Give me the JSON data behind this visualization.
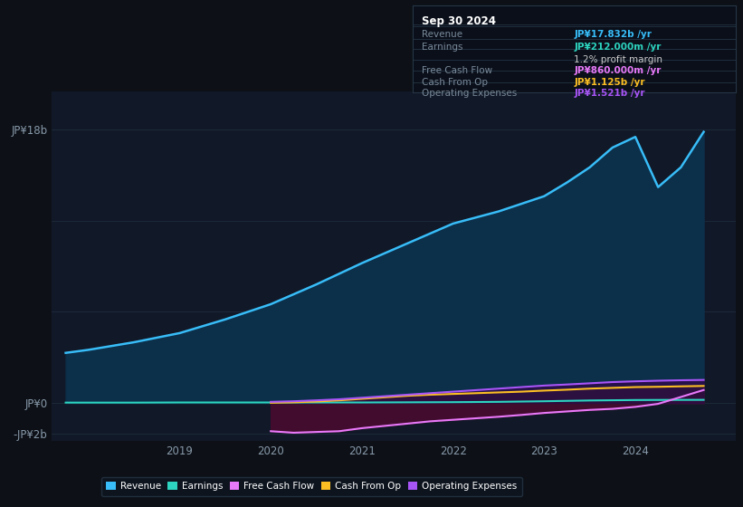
{
  "background_color": "#0d1117",
  "plot_bg_color": "#111827",
  "grid_color": "#1e2d3d",
  "text_color": "#8899aa",
  "series_colors": {
    "Revenue": "#38bdf8",
    "Earnings": "#2dd4bf",
    "Free Cash Flow": "#e879f9",
    "Cash From Op": "#fbbf24",
    "Operating Expenses": "#a855f7"
  },
  "legend_items": [
    "Revenue",
    "Earnings",
    "Free Cash Flow",
    "Cash From Op",
    "Operating Expenses"
  ],
  "legend_colors": [
    "#38bdf8",
    "#2dd4bf",
    "#e879f9",
    "#fbbf24",
    "#a855f7"
  ],
  "info_box": {
    "title": "Sep 30 2024",
    "rows": [
      {
        "label": "Revenue",
        "value": "JP¥17.832b /yr",
        "value_color": "#38bdf8"
      },
      {
        "label": "Earnings",
        "value": "JP¥212.000m /yr",
        "value_color": "#2dd4bf"
      },
      {
        "label": "",
        "value": "1.2% profit margin",
        "value_color": "#cccccc"
      },
      {
        "label": "Free Cash Flow",
        "value": "JP¥860.000m /yr",
        "value_color": "#e879f9"
      },
      {
        "label": "Cash From Op",
        "value": "JP¥1.125b /yr",
        "value_color": "#fbbf24"
      },
      {
        "label": "Operating Expenses",
        "value": "JP¥1.521b /yr",
        "value_color": "#a855f7"
      }
    ]
  },
  "revenue_x": [
    2017.75,
    2018.0,
    2018.5,
    2019.0,
    2019.5,
    2020.0,
    2020.5,
    2021.0,
    2021.5,
    2022.0,
    2022.5,
    2023.0,
    2023.25,
    2023.5,
    2023.75,
    2024.0,
    2024.25,
    2024.5,
    2024.75
  ],
  "revenue_y": [
    3300000000.0,
    3500000000.0,
    4000000000.0,
    4600000000.0,
    5500000000.0,
    6500000000.0,
    7800000000.0,
    9200000000.0,
    10500000000.0,
    11800000000.0,
    12600000000.0,
    13600000000.0,
    14500000000.0,
    15500000000.0,
    16800000000.0,
    17500000000.0,
    14200000000.0,
    15500000000.0,
    17832000000.0
  ],
  "earnings_x": [
    2017.75,
    2018.0,
    2018.5,
    2019.0,
    2019.5,
    2020.0,
    2020.5,
    2021.0,
    2021.5,
    2022.0,
    2022.5,
    2023.0,
    2023.5,
    2024.0,
    2024.5,
    2024.75
  ],
  "earnings_y": [
    30000000.0,
    30000000.0,
    30000000.0,
    40000000.0,
    40000000.0,
    40000000.0,
    40000000.0,
    40000000.0,
    50000000.0,
    60000000.0,
    80000000.0,
    120000000.0,
    170000000.0,
    200000000.0,
    210000000.0,
    212000000.0
  ],
  "fcf_x": [
    2020.0,
    2020.25,
    2020.5,
    2020.75,
    2021.0,
    2021.25,
    2021.5,
    2021.75,
    2022.0,
    2022.25,
    2022.5,
    2022.75,
    2023.0,
    2023.25,
    2023.5,
    2023.75,
    2024.0,
    2024.25,
    2024.5,
    2024.75
  ],
  "fcf_y": [
    -1850000000.0,
    -1950000000.0,
    -1900000000.0,
    -1850000000.0,
    -1650000000.0,
    -1500000000.0,
    -1350000000.0,
    -1200000000.0,
    -1100000000.0,
    -1000000000.0,
    -900000000.0,
    -780000000.0,
    -650000000.0,
    -550000000.0,
    -450000000.0,
    -380000000.0,
    -250000000.0,
    -50000000.0,
    400000000.0,
    860000000.0
  ],
  "cashfromop_x": [
    2020.0,
    2020.25,
    2020.5,
    2020.75,
    2021.0,
    2021.25,
    2021.5,
    2021.75,
    2022.0,
    2022.25,
    2022.5,
    2022.75,
    2023.0,
    2023.25,
    2023.5,
    2023.75,
    2024.0,
    2024.25,
    2024.5,
    2024.75
  ],
  "cashfromop_y": [
    20000000.0,
    50000000.0,
    100000000.0,
    180000000.0,
    280000000.0,
    380000000.0,
    480000000.0,
    550000000.0,
    600000000.0,
    650000000.0,
    700000000.0,
    750000000.0,
    820000000.0,
    880000000.0,
    950000000.0,
    1000000000.0,
    1050000000.0,
    1070000000.0,
    1100000000.0,
    1125000000.0
  ],
  "opex_x": [
    2020.0,
    2020.25,
    2020.5,
    2020.75,
    2021.0,
    2021.25,
    2021.5,
    2021.75,
    2022.0,
    2022.25,
    2022.5,
    2022.75,
    2023.0,
    2023.25,
    2023.5,
    2023.75,
    2024.0,
    2024.25,
    2024.5,
    2024.75
  ],
  "opex_y": [
    80000000.0,
    120000000.0,
    180000000.0,
    250000000.0,
    350000000.0,
    450000000.0,
    550000000.0,
    650000000.0,
    750000000.0,
    850000000.0,
    950000000.0,
    1050000000.0,
    1150000000.0,
    1220000000.0,
    1300000000.0,
    1380000000.0,
    1430000000.0,
    1470000000.0,
    1500000000.0,
    1521000000.0
  ],
  "ylim": [
    -2500000000.0,
    20500000000.0
  ],
  "xlim": [
    2017.6,
    2025.1
  ],
  "ytick_vals": [
    -2000000000.0,
    0,
    18000000000.0
  ],
  "ytick_labels": [
    "-JP¥2b",
    "JP¥0",
    "JP¥18b"
  ],
  "xtick_vals": [
    2019,
    2020,
    2021,
    2022,
    2023,
    2024
  ],
  "xtick_labels": [
    "2019",
    "2020",
    "2021",
    "2022",
    "2023",
    "2024"
  ],
  "hgrid_vals": [
    -2000000000.0,
    0,
    6000000000.0,
    12000000000.0,
    18000000000.0
  ]
}
